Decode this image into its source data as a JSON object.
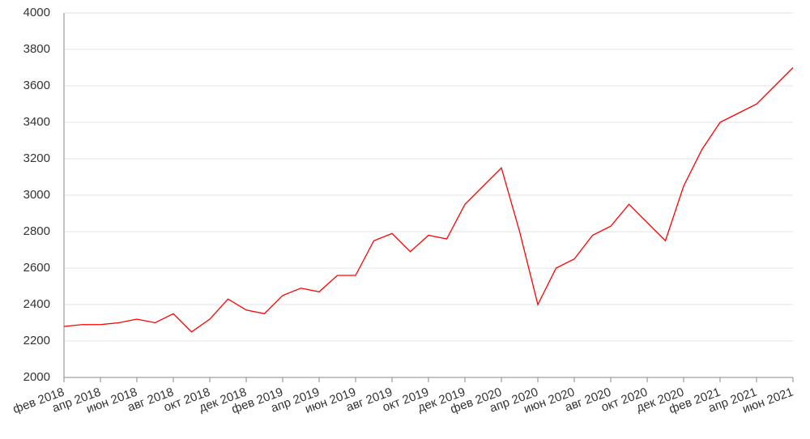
{
  "chart_data": {
    "type": "line",
    "x": [
      "2018-02",
      "2018-03",
      "2018-04",
      "2018-05",
      "2018-06",
      "2018-07",
      "2018-08",
      "2018-09",
      "2018-10",
      "2018-11",
      "2018-12",
      "2019-01",
      "2019-02",
      "2019-03",
      "2019-04",
      "2019-05",
      "2019-06",
      "2019-07",
      "2019-08",
      "2019-09",
      "2019-10",
      "2019-11",
      "2019-12",
      "2020-01",
      "2020-02",
      "2020-03",
      "2020-04",
      "2020-05",
      "2020-06",
      "2020-07",
      "2020-08",
      "2020-09",
      "2020-10",
      "2020-11",
      "2020-12",
      "2021-01",
      "2021-02",
      "2021-03",
      "2021-04",
      "2021-05",
      "2021-06"
    ],
    "series": [
      {
        "color": "#ff0000",
        "values": [
          2280,
          2290,
          2290,
          2300,
          2320,
          2300,
          2350,
          2250,
          2320,
          2430,
          2370,
          2350,
          2450,
          2490,
          2470,
          2560,
          2560,
          2750,
          2790,
          2690,
          2780,
          2760,
          2950,
          3050,
          3150,
          2800,
          2400,
          2600,
          2650,
          2780,
          2830,
          2950,
          2850,
          2750,
          3050,
          3250,
          3400,
          3450,
          3500,
          3600,
          3700
        ]
      }
    ],
    "xlim": [
      "2018-02",
      "2021-06"
    ],
    "xticks": [
      {
        "value": "2018-02",
        "label": "фев 2018"
      },
      {
        "value": "2018-04",
        "label": "апр 2018"
      },
      {
        "value": "2018-06",
        "label": "июн 2018"
      },
      {
        "value": "2018-08",
        "label": "авг 2018"
      },
      {
        "value": "2018-10",
        "label": "окт 2018"
      },
      {
        "value": "2018-12",
        "label": "дек 2018"
      },
      {
        "value": "2019-02",
        "label": "фев 2019"
      },
      {
        "value": "2019-04",
        "label": "апр 2019"
      },
      {
        "value": "2019-06",
        "label": "июн 2019"
      },
      {
        "value": "2019-08",
        "label": "авг 2019"
      },
      {
        "value": "2019-10",
        "label": "окт 2019"
      },
      {
        "value": "2019-12",
        "label": "дек 2019"
      },
      {
        "value": "2020-02",
        "label": "фев 2020"
      },
      {
        "value": "2020-04",
        "label": "апр 2020"
      },
      {
        "value": "2020-06",
        "label": "июн 2020"
      },
      {
        "value": "2020-08",
        "label": "авг 2020"
      },
      {
        "value": "2020-10",
        "label": "окт 2020"
      },
      {
        "value": "2020-12",
        "label": "дек 2020"
      },
      {
        "value": "2021-02",
        "label": "фев 2021"
      },
      {
        "value": "2021-04",
        "label": "апр 2021"
      },
      {
        "value": "2021-06",
        "label": "июн 2021"
      }
    ],
    "ylim": [
      2000,
      4000
    ],
    "yticks": [
      2000,
      2200,
      2400,
      2600,
      2800,
      3000,
      3200,
      3400,
      3600,
      3800,
      4000
    ],
    "grid": true
  }
}
